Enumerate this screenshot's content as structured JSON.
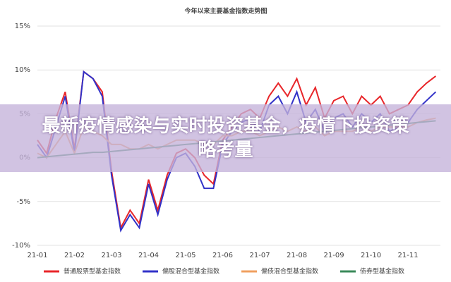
{
  "chart_data": {
    "type": "line",
    "title": "今年以来主要基金指数走势图",
    "categories": [
      "21-01",
      null,
      null,
      null,
      "21-02",
      null,
      null,
      null,
      "21-03",
      null,
      null,
      null,
      "21-04",
      null,
      null,
      null,
      "21-05",
      null,
      null,
      null,
      "21-06",
      null,
      null,
      null,
      "21-07",
      null,
      null,
      null,
      "21-08",
      null,
      null,
      null,
      "21-09",
      null,
      null,
      null,
      "21-10",
      null,
      null,
      null,
      "21-11",
      null,
      null,
      null
    ],
    "series": [
      {
        "name": "普通股票型基金指数",
        "color": "#e8262a",
        "values": [
          2,
          0.5,
          4.5,
          7.5,
          1,
          9.8,
          9,
          7.5,
          -1.5,
          -8,
          -6,
          -7.5,
          -2.5,
          -6,
          -2,
          0.5,
          1,
          0,
          -2,
          -3,
          2,
          3.5,
          5,
          5.5,
          4.5,
          7,
          8.5,
          7,
          9,
          6,
          8,
          4.5,
          6.5,
          7,
          5,
          7,
          6,
          7,
          5,
          5.5,
          6,
          7.5,
          8.5,
          9.3
        ]
      },
      {
        "name": "偏股混合型基金指数",
        "color": "#3232c8",
        "values": [
          1.5,
          0,
          3.5,
          7,
          0.5,
          9.8,
          9,
          7,
          -2,
          -8.3,
          -6.5,
          -8,
          -3,
          -6.5,
          -2.5,
          0,
          0.5,
          -1,
          -3.5,
          -3.5,
          1.5,
          3,
          4,
          4.5,
          3,
          6,
          7,
          5,
          7.5,
          4,
          5.5,
          3,
          4.5,
          5,
          3.5,
          5,
          4,
          5,
          3,
          3.5,
          4,
          5.5,
          6.5,
          7.5
        ]
      },
      {
        "name": "偏债混合型基金指数",
        "color": "#f0a060",
        "values": [
          0.5,
          0,
          1.5,
          3,
          0.5,
          3.5,
          3,
          2.5,
          1.5,
          1.5,
          1,
          1,
          1.5,
          1,
          1.5,
          2,
          2,
          2,
          1.5,
          1.5,
          2.5,
          2.5,
          3,
          3,
          2.5,
          3,
          3.5,
          3,
          3.5,
          3,
          3.5,
          2.5,
          3,
          3,
          3,
          3.5,
          3,
          3.5,
          3.5,
          3.5,
          3.5,
          4,
          4.3,
          4.5
        ]
      },
      {
        "name": "债券型基金指数",
        "color": "#3a8a5a",
        "values": [
          0,
          0.1,
          0.2,
          0.3,
          0.4,
          0.5,
          0.6,
          0.6,
          0.7,
          0.8,
          0.9,
          1,
          1.1,
          1.2,
          1.3,
          1.4,
          1.5,
          1.6,
          1.7,
          1.8,
          1.9,
          2,
          2.1,
          2.2,
          2.3,
          2.4,
          2.5,
          2.6,
          2.7,
          2.8,
          2.9,
          3,
          3.1,
          3.2,
          3.3,
          3.4,
          3.5,
          3.6,
          3.7,
          3.8,
          3.9,
          4,
          4.1,
          4.2
        ]
      }
    ],
    "ylim": [
      -10,
      15
    ],
    "yticks": [
      {
        "value": -10,
        "label": "-10%"
      },
      {
        "value": -5,
        "label": "-5%"
      },
      {
        "value": 0,
        "label": "0%"
      },
      {
        "value": 5,
        "label": "5%"
      },
      {
        "value": 10,
        "label": "10%"
      },
      {
        "value": 15,
        "label": "15%"
      }
    ],
    "grid": true
  },
  "banner": {
    "text": "最新疫情感染与实时投资基金，疫情下投资策略考量"
  }
}
